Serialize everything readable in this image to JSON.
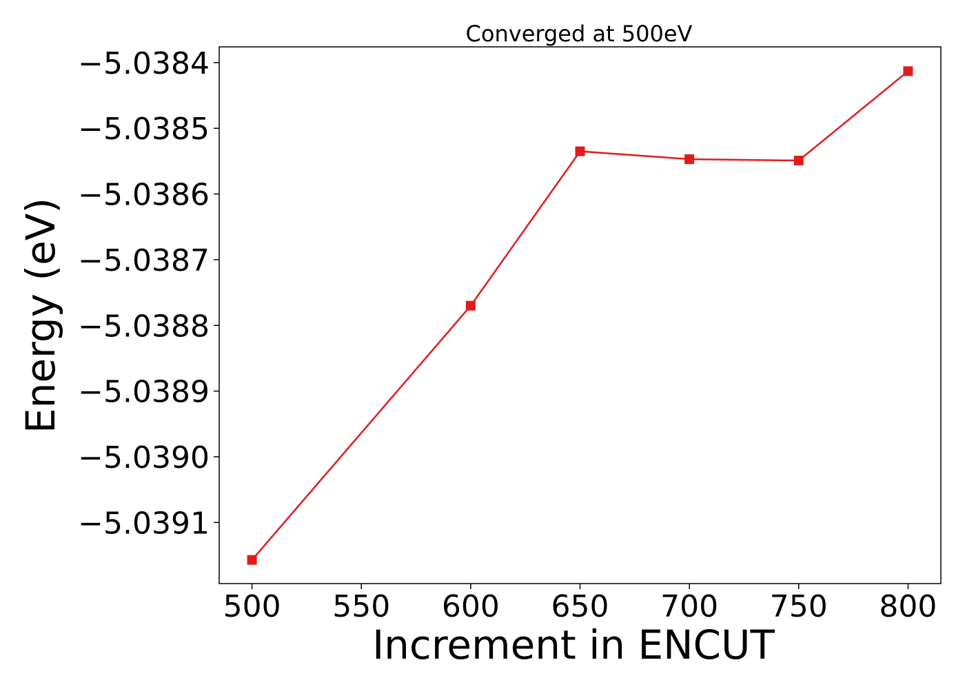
{
  "chart_data": {
    "type": "line",
    "title": "Converged at 500eV",
    "xlabel": "Increment in ENCUT",
    "ylabel": "Energy (eV)",
    "x": [
      500,
      600,
      650,
      700,
      750,
      800
    ],
    "series": [
      {
        "values": [
          -5.039157,
          -5.03877,
          -5.038535,
          -5.038547,
          -5.038549,
          -5.038413
        ],
        "color": "#e31a1c",
        "marker": "square"
      }
    ],
    "xticks": [
      500,
      550,
      600,
      650,
      700,
      750,
      800
    ],
    "xtick_labels": [
      "500",
      "550",
      "600",
      "650",
      "700",
      "750",
      "800"
    ],
    "yticks": [
      -5.0391,
      -5.039,
      -5.0389,
      -5.0388,
      -5.0387,
      -5.0386,
      -5.0385,
      -5.0384
    ],
    "ytick_labels": [
      "−5.0391",
      "−5.0390",
      "−5.0389",
      "−5.0388",
      "−5.0387",
      "−5.0386",
      "−5.0385",
      "−5.0384"
    ],
    "xlim": [
      485,
      815
    ],
    "ylim": [
      -5.039193,
      -5.038376
    ],
    "grid": false,
    "legend": "none"
  }
}
